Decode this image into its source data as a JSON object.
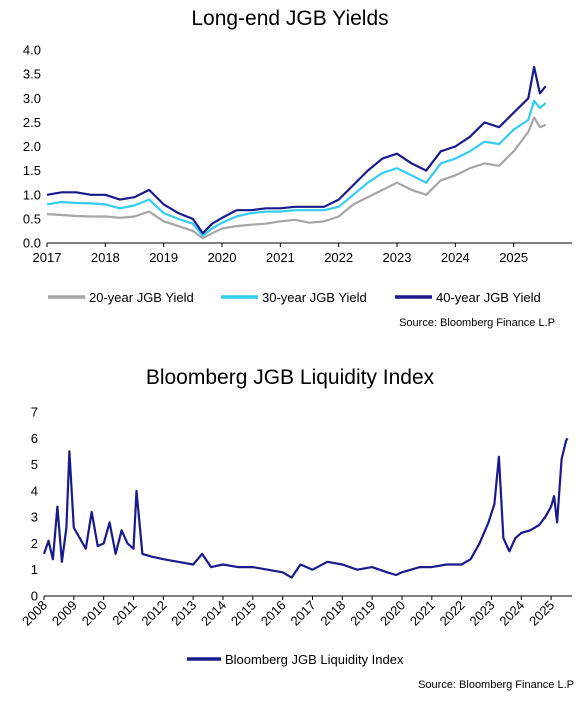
{
  "colors": {
    "y20": "#a6a6a6",
    "y30": "#33ccf2",
    "y40": "#1a1a8c",
    "liq": "#1a1a8c",
    "axis": "#000000"
  },
  "chart_data": [
    {
      "type": "line",
      "title": "Long-end JGB Yields",
      "xlabel": "",
      "ylabel": "",
      "x_ticks": [
        "2017",
        "2018",
        "2019",
        "2020",
        "2021",
        "2022",
        "2023",
        "2024",
        "2025"
      ],
      "x_range": [
        2017.0,
        2026.0
      ],
      "ylim": [
        0,
        4
      ],
      "y_ticks": [
        "0.0",
        "0.5",
        "1.0",
        "1.5",
        "2.0",
        "2.5",
        "3.0",
        "3.5",
        "4.0"
      ],
      "grid": false,
      "legend_position": "bottom",
      "source": "Source: Bloomberg Finance L.P",
      "series": [
        {
          "name": "20-year JGB Yield",
          "x": [
            2017.0,
            2017.25,
            2017.5,
            2017.75,
            2018.0,
            2018.25,
            2018.5,
            2018.75,
            2019.0,
            2019.25,
            2019.5,
            2019.67,
            2019.83,
            2020.0,
            2020.25,
            2020.5,
            2020.75,
            2021.0,
            2021.25,
            2021.5,
            2021.75,
            2022.0,
            2022.25,
            2022.5,
            2022.75,
            2023.0,
            2023.25,
            2023.5,
            2023.75,
            2024.0,
            2024.25,
            2024.5,
            2024.75,
            2025.0,
            2025.25,
            2025.35,
            2025.45,
            2025.55
          ],
          "values": [
            0.6,
            0.58,
            0.56,
            0.55,
            0.55,
            0.52,
            0.55,
            0.65,
            0.45,
            0.35,
            0.25,
            0.1,
            0.2,
            0.3,
            0.35,
            0.38,
            0.4,
            0.45,
            0.48,
            0.42,
            0.45,
            0.55,
            0.8,
            0.95,
            1.1,
            1.25,
            1.1,
            1.0,
            1.3,
            1.4,
            1.55,
            1.65,
            1.6,
            1.9,
            2.3,
            2.6,
            2.4,
            2.45
          ]
        },
        {
          "name": "30-year JGB Yield",
          "x": [
            2017.0,
            2017.25,
            2017.5,
            2017.75,
            2018.0,
            2018.25,
            2018.5,
            2018.75,
            2019.0,
            2019.25,
            2019.5,
            2019.67,
            2019.83,
            2020.0,
            2020.25,
            2020.5,
            2020.75,
            2021.0,
            2021.25,
            2021.5,
            2021.75,
            2022.0,
            2022.25,
            2022.5,
            2022.75,
            2023.0,
            2023.25,
            2023.5,
            2023.75,
            2024.0,
            2024.25,
            2024.5,
            2024.75,
            2025.0,
            2025.25,
            2025.35,
            2025.45,
            2025.55
          ],
          "values": [
            0.8,
            0.85,
            0.83,
            0.82,
            0.8,
            0.72,
            0.78,
            0.9,
            0.62,
            0.5,
            0.4,
            0.15,
            0.3,
            0.42,
            0.55,
            0.62,
            0.65,
            0.65,
            0.68,
            0.68,
            0.68,
            0.75,
            1.0,
            1.25,
            1.45,
            1.55,
            1.4,
            1.25,
            1.65,
            1.75,
            1.9,
            2.1,
            2.05,
            2.35,
            2.55,
            2.95,
            2.8,
            2.9
          ]
        },
        {
          "name": "40-year JGB Yield",
          "x": [
            2017.0,
            2017.25,
            2017.5,
            2017.75,
            2018.0,
            2018.25,
            2018.5,
            2018.75,
            2019.0,
            2019.25,
            2019.5,
            2019.67,
            2019.83,
            2020.0,
            2020.25,
            2020.5,
            2020.75,
            2021.0,
            2021.25,
            2021.5,
            2021.75,
            2022.0,
            2022.25,
            2022.5,
            2022.75,
            2023.0,
            2023.25,
            2023.5,
            2023.75,
            2024.0,
            2024.25,
            2024.5,
            2024.75,
            2025.0,
            2025.25,
            2025.35,
            2025.45,
            2025.55
          ],
          "values": [
            1.0,
            1.05,
            1.05,
            1.0,
            1.0,
            0.9,
            0.95,
            1.1,
            0.8,
            0.62,
            0.5,
            0.2,
            0.4,
            0.52,
            0.68,
            0.68,
            0.72,
            0.72,
            0.75,
            0.75,
            0.75,
            0.9,
            1.2,
            1.5,
            1.75,
            1.85,
            1.65,
            1.5,
            1.9,
            2.0,
            2.2,
            2.5,
            2.4,
            2.7,
            3.0,
            3.65,
            3.1,
            3.25
          ]
        }
      ]
    },
    {
      "type": "line",
      "title": "Bloomberg JGB Liquidity Index",
      "xlabel": "",
      "ylabel": "",
      "x_ticks": [
        "2008",
        "2009",
        "2010",
        "2011",
        "2012",
        "2013",
        "2014",
        "2015",
        "2016",
        "2017",
        "2018",
        "2019",
        "2020",
        "2021",
        "2022",
        "2023",
        "2024",
        "2025"
      ],
      "x_range": [
        2008.0,
        2025.7
      ],
      "ylim": [
        0,
        7
      ],
      "y_ticks": [
        "0",
        "1",
        "2",
        "3",
        "4",
        "5",
        "6",
        "7"
      ],
      "grid": false,
      "legend_position": "bottom",
      "source": "Source: Bloomberg Finance L.P",
      "series": [
        {
          "name": "Bloomberg JGB Liquidity Index",
          "x": [
            2008.0,
            2008.15,
            2008.3,
            2008.45,
            2008.6,
            2008.75,
            2008.85,
            2009.0,
            2009.2,
            2009.4,
            2009.6,
            2009.8,
            2010.0,
            2010.2,
            2010.4,
            2010.6,
            2010.8,
            2011.0,
            2011.1,
            2011.3,
            2011.6,
            2012.0,
            2012.5,
            2013.0,
            2013.3,
            2013.6,
            2014.0,
            2014.5,
            2015.0,
            2015.5,
            2016.0,
            2016.3,
            2016.6,
            2017.0,
            2017.5,
            2018.0,
            2018.5,
            2019.0,
            2019.5,
            2019.8,
            2020.0,
            2020.3,
            2020.6,
            2021.0,
            2021.5,
            2022.0,
            2022.3,
            2022.6,
            2022.9,
            2023.1,
            2023.25,
            2023.4,
            2023.6,
            2023.8,
            2024.0,
            2024.3,
            2024.6,
            2024.8,
            2025.0,
            2025.1,
            2025.2,
            2025.35,
            2025.5,
            2025.55
          ],
          "values": [
            1.6,
            2.1,
            1.4,
            3.4,
            1.3,
            2.6,
            5.5,
            2.6,
            2.2,
            1.8,
            3.2,
            1.9,
            2.0,
            2.8,
            1.6,
            2.5,
            2.0,
            1.8,
            4.0,
            1.6,
            1.5,
            1.4,
            1.3,
            1.2,
            1.6,
            1.1,
            1.2,
            1.1,
            1.1,
            1.0,
            0.9,
            0.7,
            1.2,
            1.0,
            1.3,
            1.2,
            1.0,
            1.1,
            0.9,
            0.8,
            0.9,
            1.0,
            1.1,
            1.1,
            1.2,
            1.2,
            1.4,
            2.0,
            2.8,
            3.5,
            5.3,
            2.2,
            1.7,
            2.2,
            2.4,
            2.5,
            2.7,
            3.0,
            3.4,
            3.8,
            2.8,
            5.2,
            5.9,
            6.0
          ]
        }
      ]
    }
  ]
}
